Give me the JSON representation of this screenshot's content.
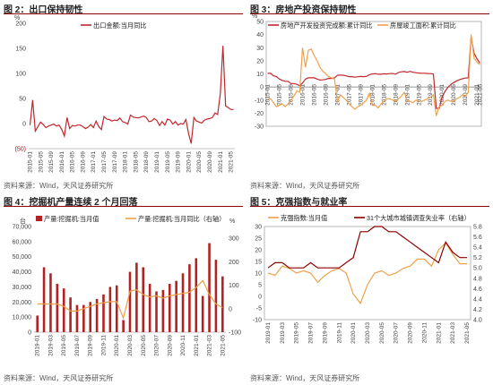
{
  "source": "资料来源：Wind，天风证券研究所",
  "colors": {
    "red": "#c0272d",
    "orange": "#f0a04b",
    "dark": "#8b0000"
  },
  "panels": [
    {
      "fig": "图 2：",
      "title": "出口保持韧性",
      "chart_data": {
        "type": "line",
        "y_unit": "%",
        "ylim": [
          -50,
          200
        ],
        "yticks": [
          -50,
          0,
          50,
          100,
          150,
          200
        ],
        "ytick_labels": [
          "(50)",
          "0",
          "50",
          "100",
          "150",
          "200"
        ],
        "xticks": [
          "2015-01",
          "2015-05",
          "2015-09",
          "2016-01",
          "2016-05",
          "2016-09",
          "2017-01",
          "2017-05",
          "2017-09",
          "2018-01",
          "2018-05",
          "2018-09",
          "2019-01",
          "2019-05",
          "2019-09",
          "2020-01",
          "2020-05",
          "2020-09",
          "2021-01",
          "2021-05"
        ],
        "x_start": "2015-01",
        "series": [
          {
            "name": "出口金额:当月同比",
            "color": "#c0272d",
            "values": [
              -3,
              47,
              -15,
              -6,
              3,
              -2,
              -8,
              -5,
              -3,
              -1,
              -5,
              -3,
              -12,
              -25,
              12,
              -10,
              -4,
              -5,
              -3,
              -3,
              -6,
              -10,
              -7,
              -2,
              -8,
              5,
              -6,
              -12,
              14,
              9,
              8,
              5,
              7,
              6,
              11,
              4,
              2,
              -1,
              17,
              13,
              12,
              11,
              13,
              15,
              12,
              4,
              5,
              10,
              6,
              -4,
              4,
              -3,
              9,
              7,
              -1,
              4,
              -3,
              0,
              -1,
              8,
              -20,
              -40,
              12,
              5,
              3,
              1,
              7,
              9,
              10,
              12,
              21,
              18,
              60,
              155,
              35,
              32,
              28,
              28
            ]
          }
        ]
      }
    },
    {
      "fig": "图 3：",
      "title": "房地产投资保持韧性",
      "chart_data": {
        "type": "line",
        "y_unit": "%",
        "ylim": [
          -30,
          50
        ],
        "yticks": [
          -30,
          -20,
          -10,
          0,
          10,
          20,
          30,
          40,
          50
        ],
        "ytick_labels": [
          "-30",
          "-20",
          "-10",
          "0",
          "10",
          "20",
          "30",
          "40",
          "50"
        ],
        "xticks": [
          "2015-01",
          "2015-05",
          "2015-09",
          "2016-01",
          "2016-05",
          "2016-09",
          "2017-01",
          "2017-05",
          "2017-09",
          "2018-01",
          "2018-05",
          "2018-09",
          "2019-01",
          "2019-05",
          "2019-09",
          "2020-01",
          "2020-05",
          "2020-09",
          "2021-01",
          "2021-05"
        ],
        "x_start": "2015-01",
        "series": [
          {
            "name": "房地产开发投资完成额:累计同比",
            "color": "#c0272d",
            "values": [
              10.4,
              10.4,
              8.5,
              8,
              6,
              5,
              4.3,
              4.3,
              2.6,
              2.6,
              2,
              1,
              3,
              6,
              7,
              7,
              7,
              6,
              5.3,
              5.4,
              5.8,
              6.6,
              6.5,
              6.9,
              8.9,
              9.1,
              9,
              8.5,
              7.9,
              7.9,
              7.5,
              7.8,
              8,
              7.9,
              8.1,
              9.4,
              9.9,
              10.2,
              9.7,
              9.7,
              10.1,
              9.9,
              10.2,
              10.3,
              9.7,
              11.1,
              11.6,
              11.8,
              11.2,
              11.9,
              11.2,
              10.9,
              10.6,
              10.5,
              10.5,
              10.3,
              10.2,
              9.9,
              -16.3,
              -16.3,
              -7.7,
              -3.3,
              -0.3,
              1.9,
              3.4,
              4.6,
              5.6,
              6.3,
              6.8,
              7,
              38.3,
              25.6,
              21.6,
              18.3
            ]
          },
          {
            "name": "房屋竣工面积:累计同比",
            "color": "#f0a04b",
            "values": [
              -9,
              -9,
              -12,
              -15,
              -14,
              -13,
              -15,
              -13,
              -10,
              -7,
              -3,
              -4,
              30,
              15,
              28,
              29,
              24,
              20,
              15,
              12,
              10,
              8,
              7,
              6,
              -11,
              -6,
              -8,
              -10,
              -13,
              -15,
              -17,
              -15,
              -14,
              -12,
              -10,
              -5,
              -14,
              -14,
              -16,
              -13,
              -11,
              -9,
              -9,
              -10,
              -11,
              -9,
              -7,
              -4,
              -11,
              -11,
              -12,
              -10,
              -11,
              -11,
              -10,
              -9,
              -8,
              -6,
              -22,
              -15,
              -14,
              -11,
              -10,
              -11,
              -11,
              -9,
              -8,
              -6,
              -7,
              -4,
              40,
              22,
              19,
              17
            ]
          }
        ]
      }
    },
    {
      "fig": "图 4：",
      "title": "挖掘机产量连续 2 个月回落",
      "chart_data": {
        "type": "bar",
        "y_unit": "台",
        "y2_unit": "%",
        "ylim": [
          0,
          70000
        ],
        "yticks": [
          0,
          10000,
          20000,
          30000,
          40000,
          50000,
          60000,
          70000
        ],
        "ytick_labels": [
          "0",
          "10,000",
          "20,000",
          "30,000",
          "40,000",
          "50,000",
          "60,000",
          "70,000"
        ],
        "y2lim": [
          -100,
          350
        ],
        "y2ticks": [
          -100,
          0,
          100,
          200,
          300
        ],
        "y2tick_labels": [
          "-100",
          "0",
          "100",
          "200",
          "300"
        ],
        "xticks": [
          "2019-01",
          "2019-03",
          "2019-05",
          "2019-07",
          "2019-09",
          "2019-11",
          "2020-01",
          "2020-03",
          "2020-05",
          "2020-07",
          "2020-09",
          "2020-11",
          "2021-01",
          "2021-03",
          "2021-05"
        ],
        "x_start": "2019-01",
        "series": [
          {
            "name": "产量:挖掘机:当月值",
            "type": "bar",
            "color": "#b22222",
            "values": [
              11000,
              43000,
              39000,
              32000,
              29000,
              23000,
              18000,
              18000,
              20000,
              22000,
              25000,
              30000,
              31000,
              8000,
              40000,
              46000,
              43000,
              32000,
              27000,
              28000,
              32000,
              34000,
              39000,
              45000,
              49000,
              24000,
              59000,
              48000,
              37000
            ]
          },
          {
            "name": "产量:挖掘机:当月同比（右轴）",
            "type": "line",
            "color": "#f0a04b",
            "values": [
              20,
              20,
              20,
              20,
              10,
              -10,
              -10,
              0,
              10,
              20,
              25,
              30,
              30,
              -40,
              75,
              80,
              60,
              50,
              55,
              45,
              55,
              60,
              65,
              70,
              90,
              120,
              60,
              20,
              5
            ]
          }
        ]
      }
    },
    {
      "fig": "图 5：",
      "title": "克强指数与就业率",
      "chart_data": {
        "type": "line",
        "ylim": [
          -10,
          30
        ],
        "yticks": [
          -10,
          -5,
          0,
          5,
          10,
          15,
          20,
          25,
          30
        ],
        "ytick_labels": [
          "-10",
          "-5",
          "0",
          "5",
          "10",
          "15",
          "20",
          "25",
          "30"
        ],
        "y2lim": [
          4.0,
          5.8
        ],
        "y2ticks": [
          4.0,
          4.2,
          4.4,
          4.6,
          4.8,
          5.0,
          5.2,
          5.4,
          5.6,
          5.8
        ],
        "y2tick_labels": [
          "4.0",
          "4.2",
          "4.4",
          "4.6",
          "4.8",
          "5.0",
          "5.2",
          "5.4",
          "5.6",
          "5.8"
        ],
        "xticks": [
          "2019-01",
          "2019-03",
          "2019-05",
          "2019-07",
          "2019-09",
          "2019-11",
          "2020-01",
          "2020-03",
          "2020-05",
          "2020-07",
          "2020-09",
          "2020-11",
          "2021-01",
          "2021-03",
          "2021-05"
        ],
        "x_start": "2019-01",
        "series": [
          {
            "name": "克强指数:当月值",
            "color": "#f0a04b",
            "axis": "left",
            "values": [
              10,
              9,
              13,
              12,
              10,
              11,
              10,
              6,
              9,
              11,
              12,
              10,
              1,
              -3,
              5,
              10,
              11,
              9,
              10,
              12,
              13,
              16,
              16,
              13,
              20,
              23,
              18,
              14,
              14
            ]
          },
          {
            "name": "31个大城市城镇调查失业率（右轴）",
            "color": "#8b0000",
            "axis": "right",
            "values": [
              5.0,
              5.1,
              5.1,
              5.0,
              5.0,
              5.0,
              5.1,
              5.0,
              5.0,
              5.0,
              5.0,
              5.1,
              5.2,
              5.7,
              5.7,
              5.8,
              5.8,
              5.7,
              5.7,
              5.6,
              5.5,
              5.4,
              5.3,
              5.2,
              5.1,
              5.5,
              5.3,
              5.2,
              5.2
            ]
          }
        ]
      }
    }
  ]
}
